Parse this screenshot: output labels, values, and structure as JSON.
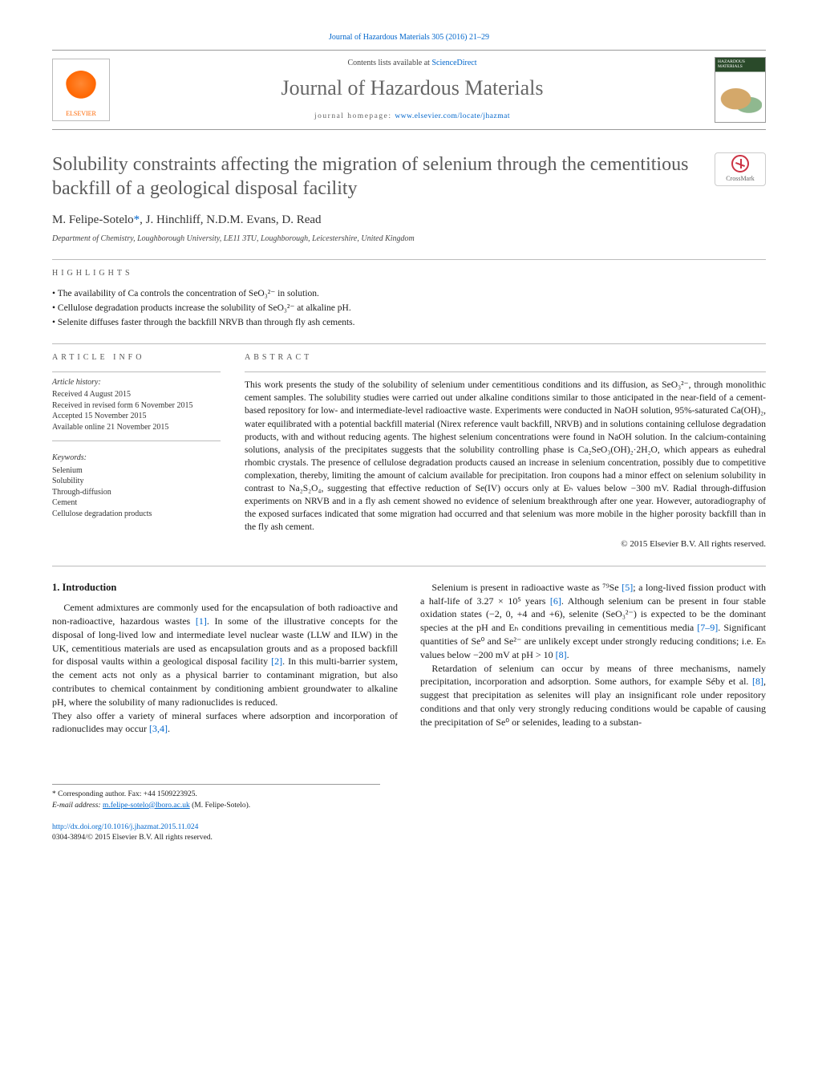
{
  "journal_ref": "Journal of Hazardous Materials 305 (2016) 21–29",
  "header": {
    "contents_prefix": "Contents lists available at ",
    "contents_link": "ScienceDirect",
    "journal_title": "Journal of Hazardous Materials",
    "homepage_prefix": "journal homepage: ",
    "homepage_link": "www.elsevier.com/locate/jhazmat",
    "elsevier_label": "ELSEVIER",
    "cover_label": "HAZARDOUS MATERIALS"
  },
  "crossmark_label": "CrossMark",
  "title": "Solubility constraints affecting the migration of selenium through the cementitious backfill of a geological disposal facility",
  "authors": "M. Felipe-Sotelo",
  "authors_corr": "*",
  "authors_rest": ", J. Hinchliff, N.D.M. Evans, D. Read",
  "affiliation": "Department of Chemistry, Loughborough University, LE11 3TU, Loughborough, Leicestershire, United Kingdom",
  "sections": {
    "highlights_heading": "HIGHLIGHTS",
    "article_info_heading": "ARTICLE INFO",
    "abstract_heading": "ABSTRACT"
  },
  "highlights": [
    "The availability of Ca controls the concentration of SeO₃²⁻ in solution.",
    "Cellulose degradation products increase the solubility of SeO₃²⁻ at alkaline pH.",
    "Selenite diffuses faster through the backfill NRVB than through fly ash cements."
  ],
  "article_info": {
    "history_head": "Article history:",
    "received": "Received 4 August 2015",
    "revised": "Received in revised form 6 November 2015",
    "accepted": "Accepted 15 November 2015",
    "online": "Available online 21 November 2015",
    "keywords_head": "Keywords:",
    "keywords": [
      "Selenium",
      "Solubility",
      "Through-diffusion",
      "Cement",
      "Cellulose degradation products"
    ]
  },
  "abstract": "This work presents the study of the solubility of selenium under cementitious conditions and its diffusion, as SeO₃²⁻, through monolithic cement samples. The solubility studies were carried out under alkaline conditions similar to those anticipated in the near-field of a cement-based repository for low- and intermediate-level radioactive waste. Experiments were conducted in NaOH solution, 95%-saturated Ca(OH)₂, water equilibrated with a potential backfill material (Nirex reference vault backfill, NRVB) and in solutions containing cellulose degradation products, with and without reducing agents. The highest selenium concentrations were found in NaOH solution. In the calcium-containing solutions, analysis of the precipitates suggests that the solubility controlling phase is Ca₂SeO₃(OH)₂·2H₂O, which appears as euhedral rhombic crystals. The presence of cellulose degradation products caused an increase in selenium concentration, possibly due to competitive complexation, thereby, limiting the amount of calcium available for precipitation. Iron coupons had a minor effect on selenium solubility in contrast to Na₂S₂O₄, suggesting that effective reduction of Se(IV) occurs only at Eₕ values below −300 mV. Radial through-diffusion experiments on NRVB and in a fly ash cement showed no evidence of selenium breakthrough after one year. However, autoradiography of the exposed surfaces indicated that some migration had occurred and that selenium was more mobile in the higher porosity backfill than in the fly ash cement.",
  "copyright": "© 2015 Elsevier B.V. All rights reserved.",
  "intro_heading": "1. Introduction",
  "intro_p1a": "Cement admixtures are commonly used for the encapsulation of both radioactive and non-radioactive, hazardous wastes ",
  "intro_ref1": "[1]",
  "intro_p1b": ". In some of the illustrative concepts for the disposal of long-lived low and intermediate level nuclear waste (LLW and ILW) in the UK, cementitious materials are used as encapsulation grouts and as a proposed backfill for disposal vaults within a geological disposal facility ",
  "intro_ref2": "[2]",
  "intro_p1c": ". In this multi-barrier system, the cement acts not only as a physical barrier to contaminant migration, but also contributes to chemical containment by conditioning ambient groundwater to alkaline pH, where the solubility of many radionuclides is reduced.",
  "intro_p2a": "They also offer a variety of mineral surfaces where adsorption and incorporation of radionuclides may occur ",
  "intro_ref34": "[3,4]",
  "intro_p2b": ".",
  "intro_p3a": "Selenium is present in radioactive waste as ⁷⁹Se ",
  "intro_ref5": "[5]",
  "intro_p3b": "; a long-lived fission product with a half-life of 3.27 × 10⁵ years ",
  "intro_ref6": "[6]",
  "intro_p3c": ". Although selenium can be present in four stable oxidation states (−2, 0, +4 and +6), selenite (SeO₃²⁻) is expected to be the dominant species at the pH and Eₕ conditions prevailing in cementitious media ",
  "intro_ref79": "[7–9]",
  "intro_p3d": ". Significant quantities of Se⁰ and Se²⁻ are unlikely except under strongly reducing conditions; i.e. Eₕ values below −200 mV at pH > 10 ",
  "intro_ref8": "[8]",
  "intro_p3e": ".",
  "intro_p4a": "Retardation of selenium can occur by means of three mechanisms, namely precipitation, incorporation and adsorption. Some authors, for example Séby et al. ",
  "intro_ref8b": "[8]",
  "intro_p4b": ", suggest that precipitation as selenites will play an insignificant role under repository conditions and that only very strongly reducing conditions would be capable of causing the precipitation of Se⁰ or selenides, leading to a substan-",
  "footnote": {
    "corr_label": "* Corresponding author. Fax: +44 1509223925.",
    "email_label": "E-mail address: ",
    "email": "m.felipe-sotelo@lboro.ac.uk",
    "email_suffix": " (M. Felipe-Sotelo)."
  },
  "doi": {
    "url": "http://dx.doi.org/10.1016/j.jhazmat.2015.11.024",
    "issn_line": "0304-3894/© 2015 Elsevier B.V. All rights reserved."
  },
  "colors": {
    "link": "#0066cc",
    "title_gray": "#5a5a5a",
    "orange": "#ff6600",
    "rule": "#bbbbbb"
  }
}
